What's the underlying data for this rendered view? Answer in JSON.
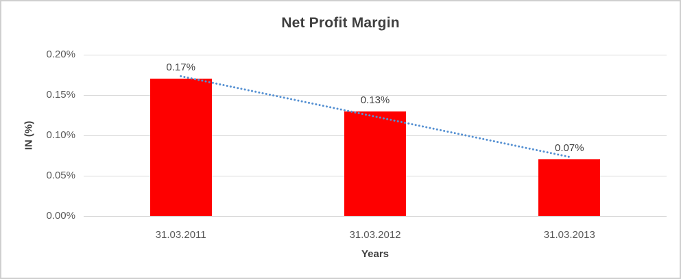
{
  "chart_data": {
    "type": "bar",
    "title": "Net Profit Margin",
    "xlabel": "Years",
    "ylabel": "IN (%)",
    "categories": [
      "31.03.2011",
      "31.03.2012",
      "31.03.2013"
    ],
    "values": [
      0.17,
      0.13,
      0.07
    ],
    "value_labels": [
      "0.17%",
      "0.13%",
      "0.07%"
    ],
    "ylim": [
      0,
      0.2
    ],
    "yticks": {
      "values": [
        0.0,
        0.05,
        0.1,
        0.15,
        0.2
      ],
      "labels": [
        "0.00%",
        "0.05%",
        "0.10%",
        "0.15%",
        "0.20%"
      ]
    },
    "grid": "horizontal",
    "legend_position": "none",
    "trendline": {
      "type": "linear",
      "style": "dotted"
    },
    "colors": {
      "bar": "#fe0000",
      "trendline": "#5590d2",
      "gridline": "#d9d9d9",
      "title_text": "#3f3f3f",
      "tick_text": "#595959",
      "border": "#cfcfcf"
    }
  }
}
